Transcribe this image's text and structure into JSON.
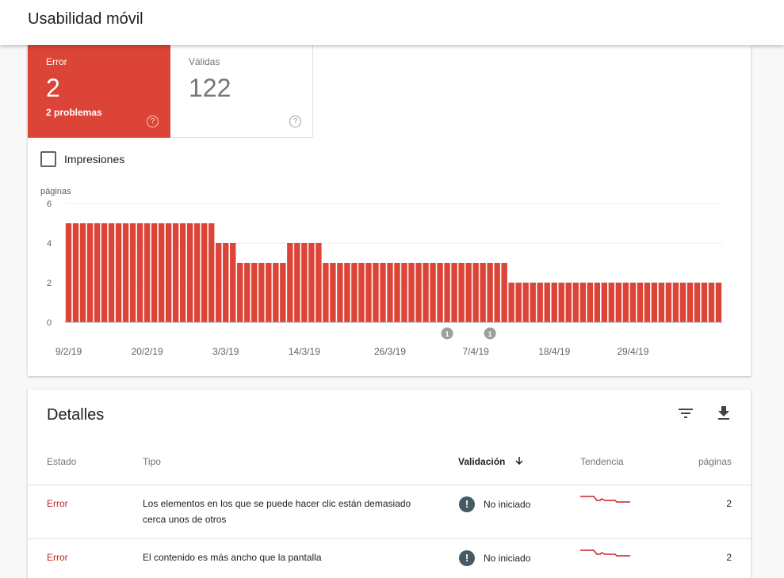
{
  "header": {
    "title": "Usabilidad móvil"
  },
  "summary": {
    "error": {
      "label": "Error",
      "value": "2",
      "sub": "2 problemas",
      "help": "?"
    },
    "valid": {
      "label": "Válidas",
      "value": "122",
      "help": "?"
    }
  },
  "impressions_label": "Impresiones",
  "colors": {
    "error": "#db4437",
    "status_error": "#c5221f",
    "trend": "#c5221f"
  },
  "chart_data": {
    "type": "bar",
    "ylabel": "páginas",
    "ylim": [
      0,
      6
    ],
    "yticks": [
      "0",
      "2",
      "4",
      "6"
    ],
    "xtick_labels": [
      "9/2/19",
      "20/2/19",
      "3/3/19",
      "14/3/19",
      "26/3/19",
      "7/4/19",
      "18/4/19",
      "29/4/19"
    ],
    "xtick_index": [
      0,
      11,
      22,
      33,
      45,
      57,
      68,
      79
    ],
    "annotations": [
      {
        "label": "1",
        "index": 53
      },
      {
        "label": "1",
        "index": 59
      }
    ],
    "values": [
      5,
      5,
      5,
      5,
      5,
      5,
      5,
      5,
      5,
      5,
      5,
      5,
      5,
      5,
      5,
      5,
      5,
      5,
      5,
      5,
      5,
      4,
      4,
      4,
      3,
      3,
      3,
      3,
      3,
      3,
      3,
      4,
      4,
      4,
      4,
      4,
      3,
      3,
      3,
      3,
      3,
      3,
      3,
      3,
      3,
      3,
      3,
      3,
      3,
      3,
      3,
      3,
      3,
      3,
      3,
      3,
      3,
      3,
      3,
      3,
      3,
      3,
      2,
      2,
      2,
      2,
      2,
      2,
      2,
      2,
      2,
      2,
      2,
      2,
      2,
      2,
      2,
      2,
      2,
      2,
      2,
      2,
      2,
      2,
      2,
      2,
      2,
      2,
      2,
      2,
      2,
      2
    ]
  },
  "details": {
    "title": "Detalles",
    "filter_icon": "filter-icon",
    "download_icon": "download-icon",
    "columns": {
      "estado": "Estado",
      "tipo": "Tipo",
      "validacion": "Validación",
      "tendencia": "Tendencia",
      "paginas": "páginas"
    },
    "rows": [
      {
        "estado": "Error",
        "tipo": "Los elementos en los que se puede hacer clic están demasiado cerca unos de otros",
        "validacion": "No iniciado",
        "paginas": "2"
      },
      {
        "estado": "Error",
        "tipo": "El contenido es más ancho que la pantalla",
        "validacion": "No iniciado",
        "paginas": "2"
      }
    ]
  }
}
